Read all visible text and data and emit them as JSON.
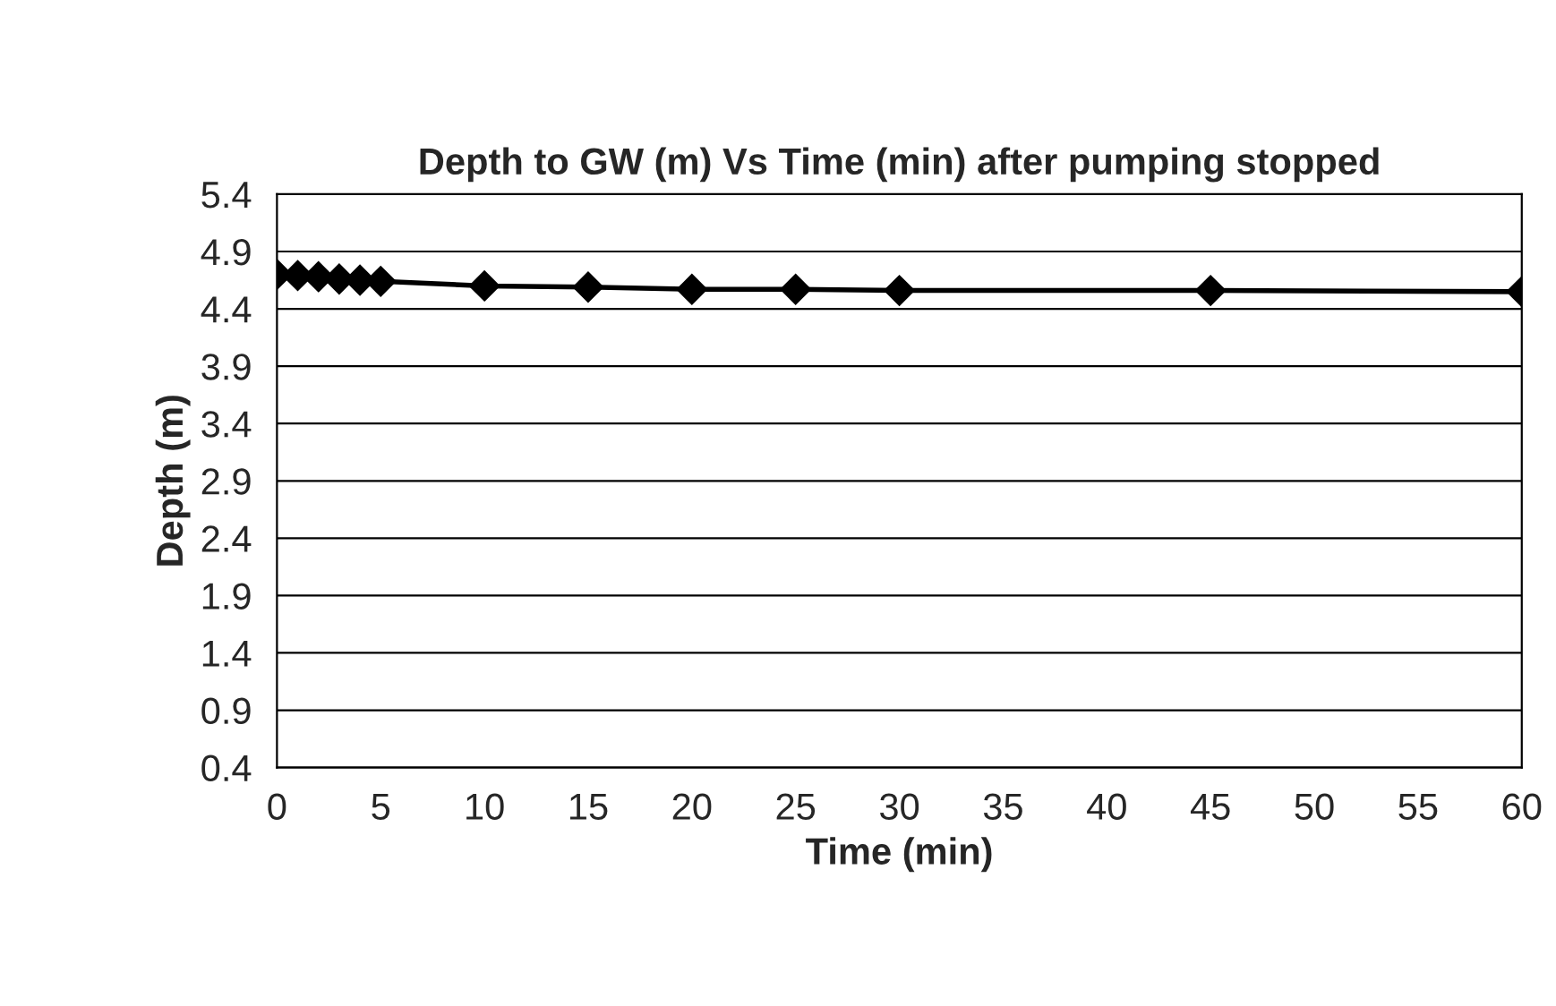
{
  "chart_data": {
    "type": "line",
    "title": "Depth to GW (m) Vs Time (min) after pumping stopped",
    "xlabel": "Time (min)",
    "ylabel": "Depth (m)",
    "x": [
      0,
      1,
      2,
      3,
      4,
      5,
      10,
      15,
      20,
      25,
      30,
      45,
      60
    ],
    "series": [
      {
        "color": "#000000",
        "values": [
          4.7,
          4.69,
          4.68,
          4.66,
          4.65,
          4.64,
          4.6,
          4.59,
          4.57,
          4.57,
          4.56,
          4.56,
          4.55
        ]
      }
    ],
    "xlim": [
      0,
      60
    ],
    "xticks": [
      0,
      5,
      10,
      15,
      20,
      25,
      30,
      35,
      40,
      45,
      50,
      55,
      60
    ],
    "ylim": [
      0.4,
      5.4
    ],
    "yticks": [
      0.4,
      0.9,
      1.4,
      1.9,
      2.4,
      2.9,
      3.4,
      3.9,
      4.4,
      4.9,
      5.4
    ],
    "grid": "y",
    "legend": false,
    "marker": "diamond",
    "line_style": "solid"
  }
}
